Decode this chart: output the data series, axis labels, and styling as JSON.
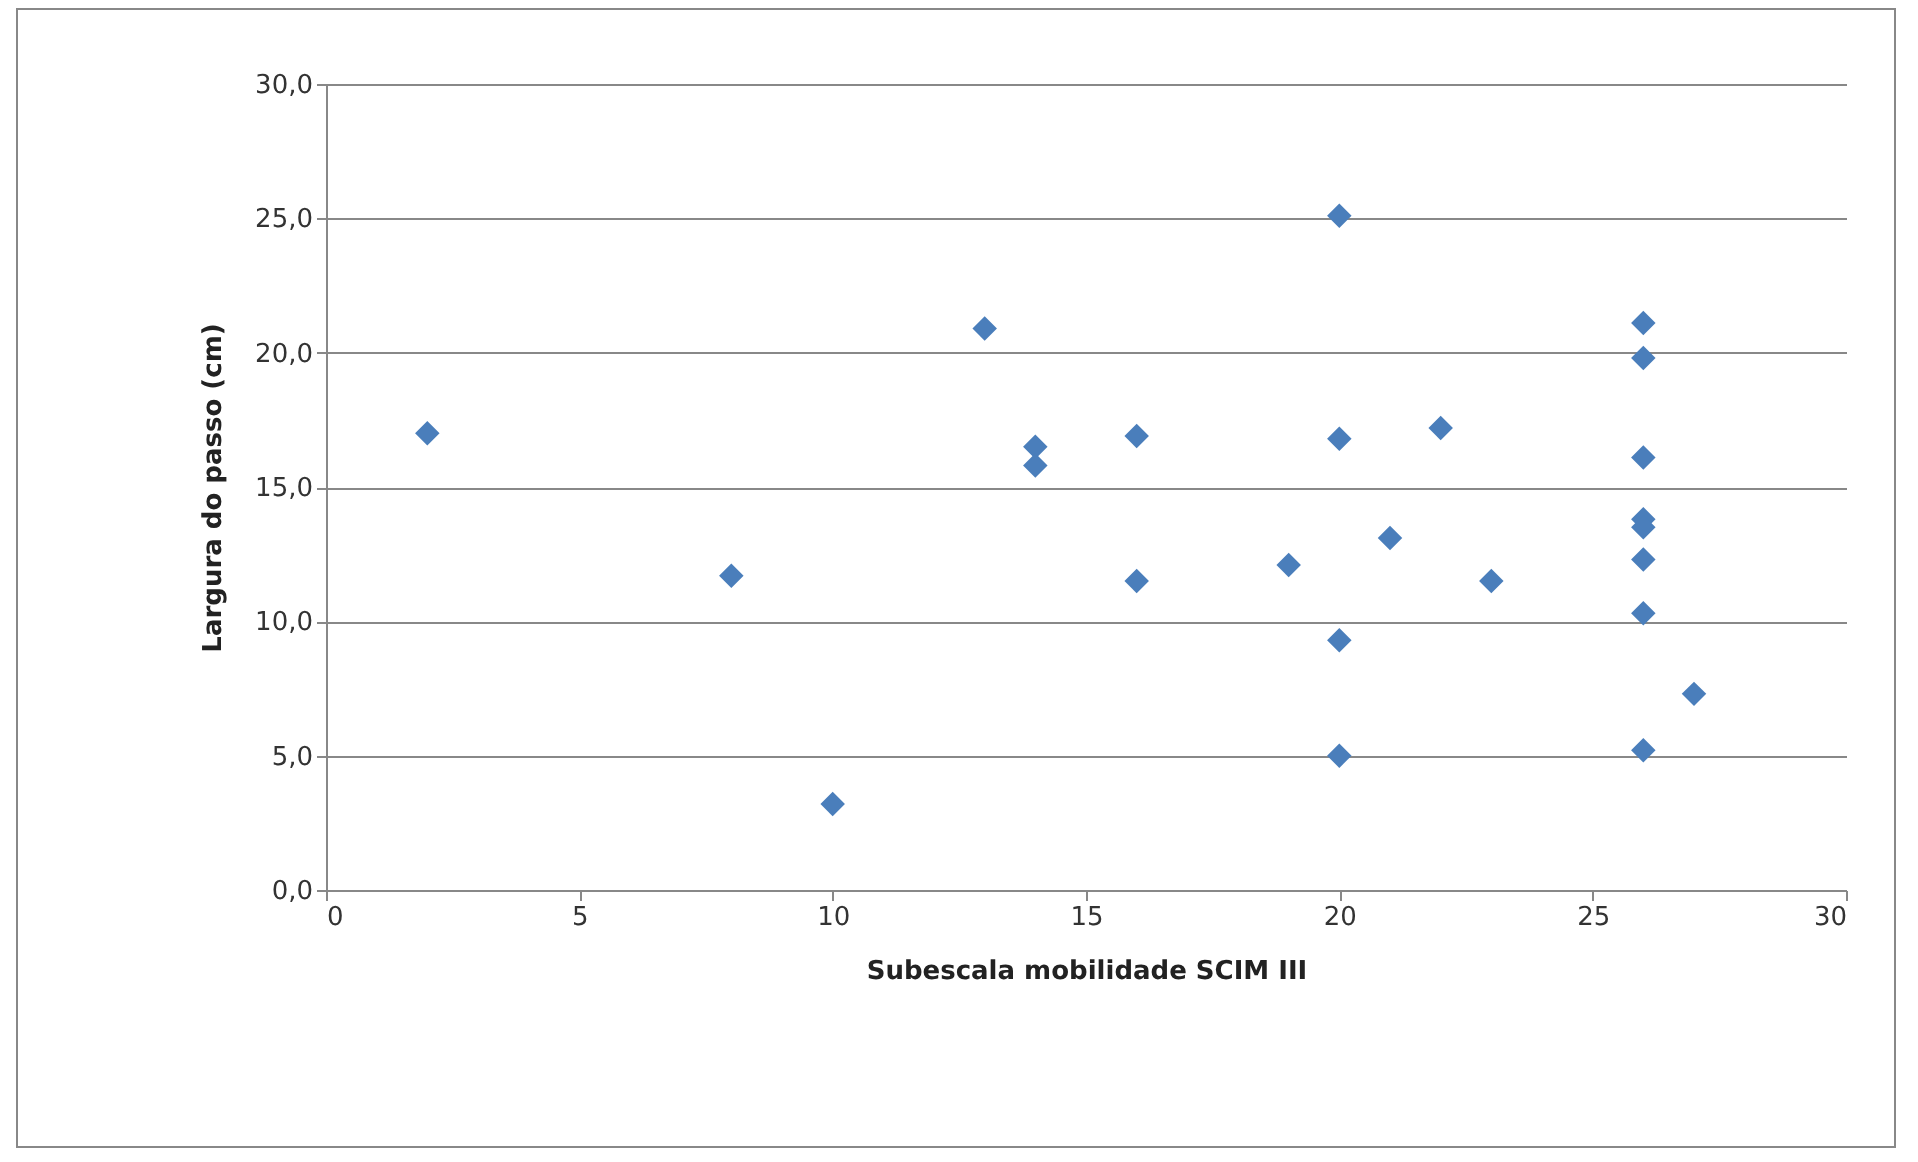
{
  "chart_data": {
    "type": "scatter",
    "xlabel": "Subescala mobilidade SCIM III",
    "ylabel": "Largura do passo (cm)",
    "x": [
      2,
      8,
      10,
      13,
      14,
      14,
      16,
      16,
      19,
      20,
      20,
      20,
      20,
      21,
      22,
      23,
      26,
      26,
      26,
      26,
      26,
      26,
      26,
      26,
      27
    ],
    "series": [
      {
        "color": "#4a7ebb",
        "values": [
          17.0,
          11.7,
          3.2,
          20.9,
          16.5,
          15.8,
          16.9,
          11.5,
          12.1,
          25.1,
          16.8,
          9.3,
          5.0,
          13.1,
          17.2,
          11.5,
          21.1,
          19.8,
          16.1,
          13.8,
          13.5,
          12.3,
          10.3,
          5.2,
          7.3
        ]
      }
    ],
    "xlim": [
      0,
      30
    ],
    "xticks": [
      0,
      5,
      10,
      15,
      20,
      25,
      30
    ],
    "ylim": [
      0,
      30
    ],
    "yticks": [
      {
        "value": 0,
        "label": "0,0"
      },
      {
        "value": 5,
        "label": "5,0"
      },
      {
        "value": 10,
        "label": "10,0"
      },
      {
        "value": 15,
        "label": "15,0"
      },
      {
        "value": 20,
        "label": "20,0"
      },
      {
        "value": 25,
        "label": "25,0"
      },
      {
        "value": 30,
        "label": "30,0"
      }
    ],
    "grid": "y",
    "marker": "diamond"
  }
}
